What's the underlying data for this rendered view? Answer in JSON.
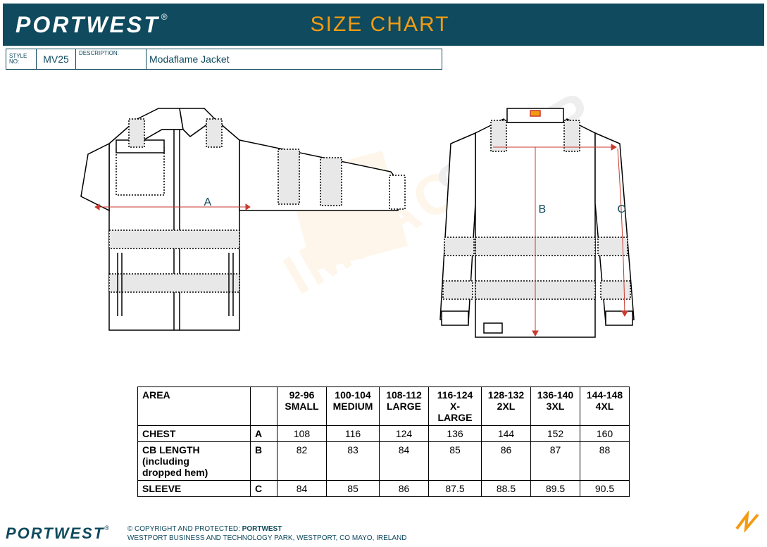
{
  "header": {
    "brand": "PORTWEST",
    "title": "SIZE CHART"
  },
  "info": {
    "style_label1": "STYLE",
    "style_label2": "NO:",
    "style_no": "MV25",
    "description_label": "DESCRIPTION:",
    "description": "Modaflame Jacket"
  },
  "diagram": {
    "letter_a": "A",
    "letter_b": "B",
    "letter_c": "C"
  },
  "table": {
    "area_header": "AREA",
    "size_headers": [
      {
        "range": "92-96",
        "name": "SMALL"
      },
      {
        "range": "100-104",
        "name": "MEDIUM"
      },
      {
        "range": "108-112",
        "name": "LARGE"
      },
      {
        "range": "116-124",
        "name": "X-LARGE"
      },
      {
        "range": "128-132",
        "name": "2XL"
      },
      {
        "range": "136-140",
        "name": "3XL"
      },
      {
        "range": "144-148",
        "name": "4XL"
      }
    ],
    "rows": [
      {
        "area": "CHEST",
        "letter": "A",
        "values": [
          "108",
          "116",
          "124",
          "136",
          "144",
          "152",
          "160"
        ]
      },
      {
        "area": "CB LENGTH (including dropped hem)",
        "letter": "B",
        "values": [
          "82",
          "83",
          "84",
          "85",
          "86",
          "87",
          "88"
        ]
      },
      {
        "area": "SLEEVE",
        "letter": "C",
        "values": [
          "84",
          "85",
          "86",
          "87.5",
          "88.5",
          "89.5",
          "90.5"
        ]
      }
    ]
  },
  "watermark": {
    "text1": "IMPACT",
    "text2": "SHOP"
  },
  "footer": {
    "brand": "PORTWEST",
    "copyright_label": "© COPYRIGHT AND PROTECTED: ",
    "copyright_brand": "PORTWEST",
    "address": "WESTPORT BUSINESS AND TECHNOLOGY PARK, WESTPORT, CO MAYO, IRELAND"
  },
  "colors": {
    "header_bg": "#0f4a5e",
    "accent": "#f39c12",
    "text": "#0f4a5e",
    "line": "#000000",
    "measure": "#c93a2f"
  }
}
